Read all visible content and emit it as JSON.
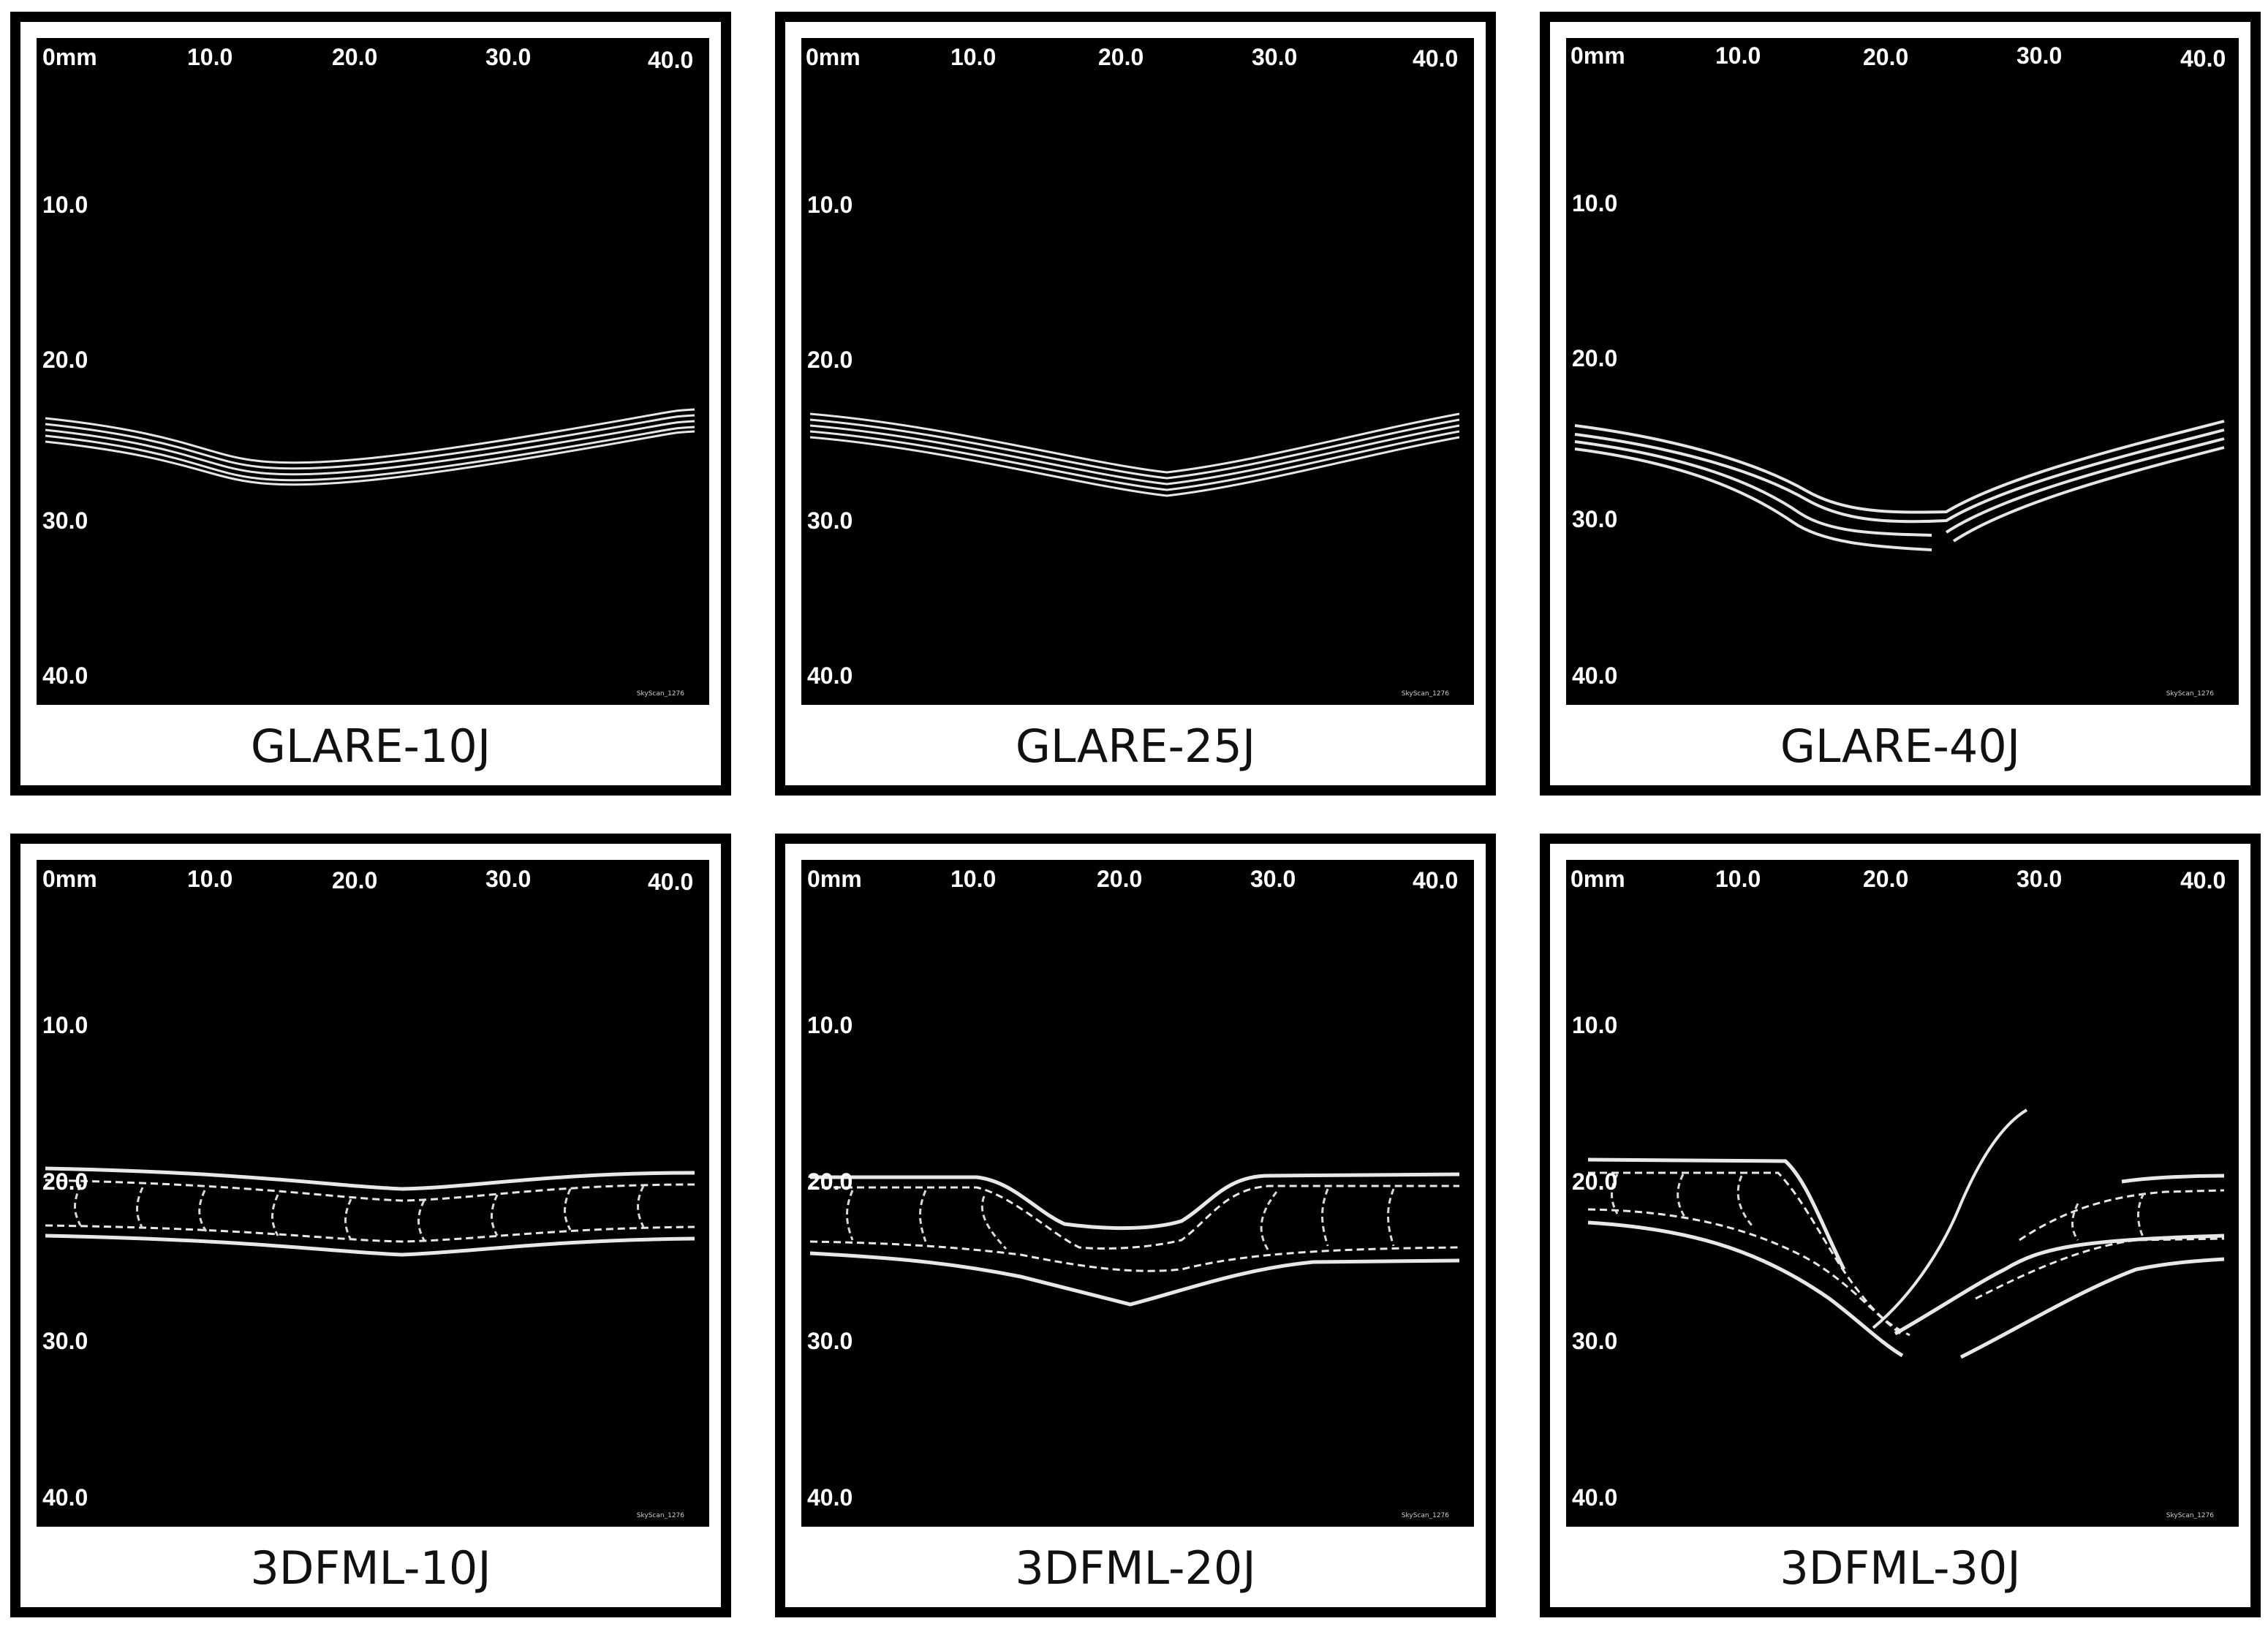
{
  "colors": {
    "scan_background": "#000000",
    "scan_line": "#e8e8e8",
    "frame": "#000000"
  },
  "panels": [
    {
      "caption": "GLARE-10J",
      "axis": {
        "x_ticks": [
          "0mm",
          "10.0",
          "20.0",
          "30.0",
          "40.0"
        ],
        "y_ticks": [
          "10.0",
          "20.0",
          "30.0",
          "40.0"
        ]
      },
      "watermark": "SkyScan_1276"
    },
    {
      "caption": "GLARE-25J",
      "axis": {
        "x_ticks": [
          "0mm",
          "10.0",
          "20.0",
          "30.0",
          "40.0"
        ],
        "y_ticks": [
          "10.0",
          "20.0",
          "30.0",
          "40.0"
        ]
      },
      "watermark": "SkyScan_1276"
    },
    {
      "caption": "GLARE-40J",
      "axis": {
        "x_ticks": [
          "0mm",
          "10.0",
          "20.0",
          "30.0",
          "40.0"
        ],
        "y_ticks": [
          "10.0",
          "20.0",
          "30.0",
          "40.0"
        ]
      },
      "watermark": "SkyScan_1276"
    },
    {
      "caption": "3DFML-10J",
      "axis": {
        "x_ticks": [
          "0mm",
          "10.0",
          "20.0",
          "30.0",
          "40.0"
        ],
        "y_ticks": [
          "10.0",
          "20.0",
          "30.0",
          "40.0"
        ]
      },
      "watermark": "SkyScan_1276"
    },
    {
      "caption": "3DFML-20J",
      "axis": {
        "x_ticks": [
          "0mm",
          "10.0",
          "20.0",
          "30.0",
          "40.0"
        ],
        "y_ticks": [
          "10.0",
          "20.0",
          "30.0",
          "40.0"
        ]
      },
      "watermark": "SkyScan_1276"
    },
    {
      "caption": "3DFML-30J",
      "axis": {
        "x_ticks": [
          "0mm",
          "10.0",
          "20.0",
          "30.0",
          "40.0"
        ],
        "y_ticks": [
          "10.0",
          "20.0",
          "30.0",
          "40.0"
        ]
      },
      "watermark": "SkyScan_1276"
    }
  ]
}
